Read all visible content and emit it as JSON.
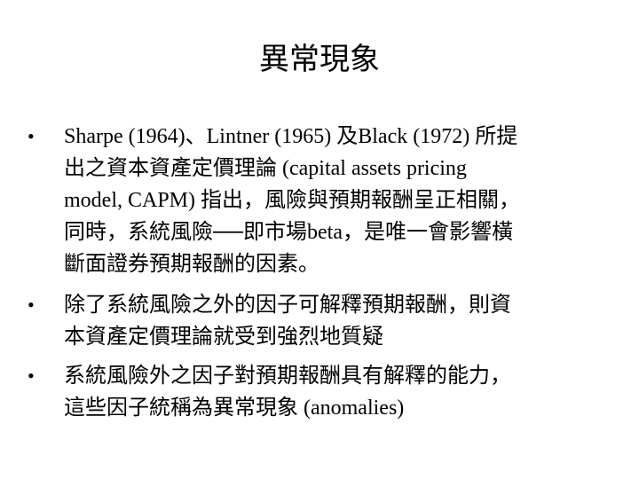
{
  "title": "異常現象",
  "bullets": [
    {
      "lines": [
        "Sharpe (1964)、Lintner (1965) 及Black (1972) 所提",
        "出之資本資產定價理論 (capital assets pricing",
        "model, CAPM) 指出，風險與預期報酬呈正相關，",
        "同時，系統風險──即市場beta，是唯一會影響橫",
        "斷面證券預期報酬的因素。"
      ]
    },
    {
      "lines": [
        "除了系統風險之外的因子可解釋預期報酬，則資",
        "本資產定價理論就受到強烈地質疑"
      ]
    },
    {
      "lines": [
        "系統風險外之因子對預期報酬具有解釋的能力，",
        "這些因子統稱為異常現象 (anomalies)"
      ]
    }
  ],
  "bullet_glyph": "•"
}
